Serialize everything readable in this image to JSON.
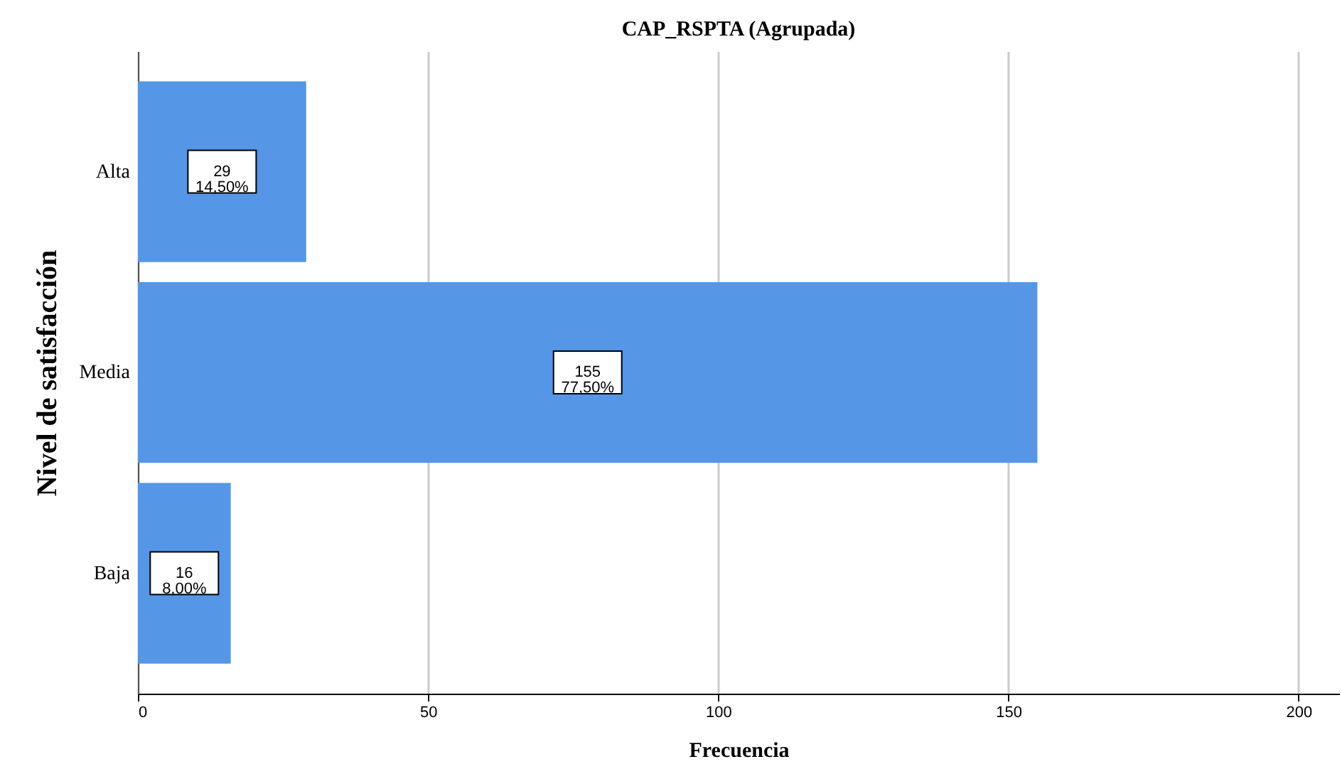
{
  "chart_data": {
    "type": "bar",
    "orientation": "horizontal",
    "title": "CAP_RSPTA (Agrupada)",
    "xlabel": "Frecuencia",
    "ylabel": "Nivel de satisfacción",
    "categories": [
      "Alta",
      "Media",
      "Baja"
    ],
    "values": [
      29,
      155,
      16
    ],
    "color": "#5596e6",
    "value_labels": [
      "29\n14,50%",
      "155\n77,50%",
      "16\n8,00%"
    ],
    "xlim": [
      0,
      207
    ],
    "xticks": [
      0,
      50,
      100,
      150,
      200
    ],
    "grid": "x"
  }
}
